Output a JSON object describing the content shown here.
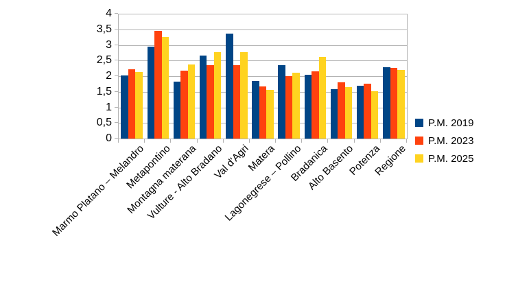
{
  "chart_data": {
    "type": "bar",
    "title": "",
    "xlabel": "",
    "ylabel": "",
    "categories": [
      "Marmo Platano – Melandro",
      "Metapontino",
      "Montagna materana",
      "Vulture - Alto Bradano",
      "Val d'Agri",
      "Matera",
      "Lagonegrese – Pollino",
      "Bradanica",
      "Alto Basento",
      "Potenza",
      "Regione"
    ],
    "series": [
      {
        "name": "P.M. 2019",
        "color": "#004586",
        "values": [
          2.02,
          2.94,
          1.83,
          2.66,
          3.37,
          1.84,
          2.35,
          2.05,
          1.58,
          1.69,
          2.29
        ]
      },
      {
        "name": "P.M. 2023",
        "color": "#FF420E",
        "values": [
          2.21,
          3.44,
          2.18,
          2.35,
          2.35,
          1.66,
          2.0,
          2.16,
          1.8,
          1.76,
          2.26
        ]
      },
      {
        "name": "P.M. 2025",
        "color": "#FFD320",
        "values": [
          2.14,
          3.25,
          2.38,
          2.77,
          2.77,
          1.57,
          2.1,
          2.62,
          1.65,
          1.52,
          2.19
        ]
      }
    ],
    "ylim": [
      0,
      4
    ],
    "ytick_step": 0.5,
    "ytick_labels": [
      "0",
      "0,5",
      "1",
      "1,5",
      "2",
      "2,5",
      "3",
      "3,5",
      "4"
    ],
    "decimal_separator": ",",
    "grid": true,
    "gridline_color": "#b3b3b3",
    "legend_position": "right"
  }
}
